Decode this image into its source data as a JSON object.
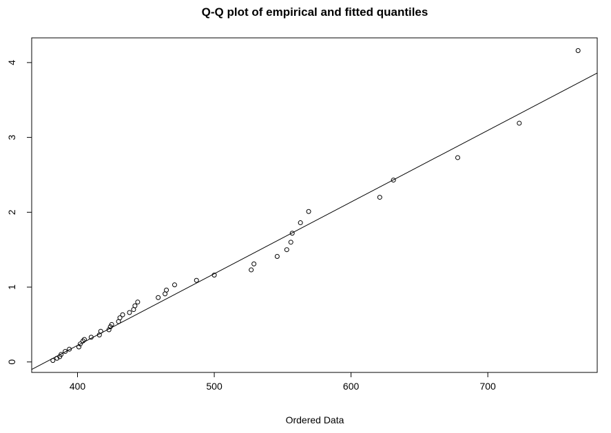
{
  "chart_data": {
    "type": "scatter",
    "title": "Q-Q plot of empirical and fitted quantiles",
    "xlabel": "Ordered Data",
    "ylabel": "",
    "xlim": [
      366.5,
      780
    ],
    "ylim": [
      -0.14,
      4.33
    ],
    "xticks": [
      400,
      500,
      600,
      700
    ],
    "yticks": [
      0,
      1,
      2,
      3,
      4
    ],
    "grid": false,
    "legend": "none",
    "reference_line": {
      "x": [
        366.5,
        780
      ],
      "y": [
        -0.1,
        3.86
      ]
    },
    "points": [
      {
        "x": 382,
        "y": 0.02
      },
      {
        "x": 385,
        "y": 0.05
      },
      {
        "x": 387,
        "y": 0.07
      },
      {
        "x": 388,
        "y": 0.1
      },
      {
        "x": 391,
        "y": 0.14
      },
      {
        "x": 394,
        "y": 0.17
      },
      {
        "x": 401,
        "y": 0.2
      },
      {
        "x": 402,
        "y": 0.24
      },
      {
        "x": 404,
        "y": 0.28
      },
      {
        "x": 405,
        "y": 0.3
      },
      {
        "x": 410,
        "y": 0.33
      },
      {
        "x": 416,
        "y": 0.36
      },
      {
        "x": 417,
        "y": 0.41
      },
      {
        "x": 423,
        "y": 0.43
      },
      {
        "x": 424,
        "y": 0.47
      },
      {
        "x": 425,
        "y": 0.5
      },
      {
        "x": 430,
        "y": 0.54
      },
      {
        "x": 431,
        "y": 0.59
      },
      {
        "x": 433,
        "y": 0.63
      },
      {
        "x": 438,
        "y": 0.66
      },
      {
        "x": 441,
        "y": 0.7
      },
      {
        "x": 442,
        "y": 0.75
      },
      {
        "x": 444,
        "y": 0.8
      },
      {
        "x": 459,
        "y": 0.86
      },
      {
        "x": 464,
        "y": 0.91
      },
      {
        "x": 465,
        "y": 0.96
      },
      {
        "x": 471,
        "y": 1.03
      },
      {
        "x": 487,
        "y": 1.09
      },
      {
        "x": 500,
        "y": 1.16
      },
      {
        "x": 527,
        "y": 1.23
      },
      {
        "x": 529,
        "y": 1.31
      },
      {
        "x": 546,
        "y": 1.41
      },
      {
        "x": 553,
        "y": 1.5
      },
      {
        "x": 556,
        "y": 1.6
      },
      {
        "x": 557,
        "y": 1.72
      },
      {
        "x": 563,
        "y": 1.86
      },
      {
        "x": 569,
        "y": 2.01
      },
      {
        "x": 621,
        "y": 2.2
      },
      {
        "x": 631,
        "y": 2.43
      },
      {
        "x": 678,
        "y": 2.73
      },
      {
        "x": 723,
        "y": 3.19
      },
      {
        "x": 766,
        "y": 4.16
      }
    ]
  }
}
